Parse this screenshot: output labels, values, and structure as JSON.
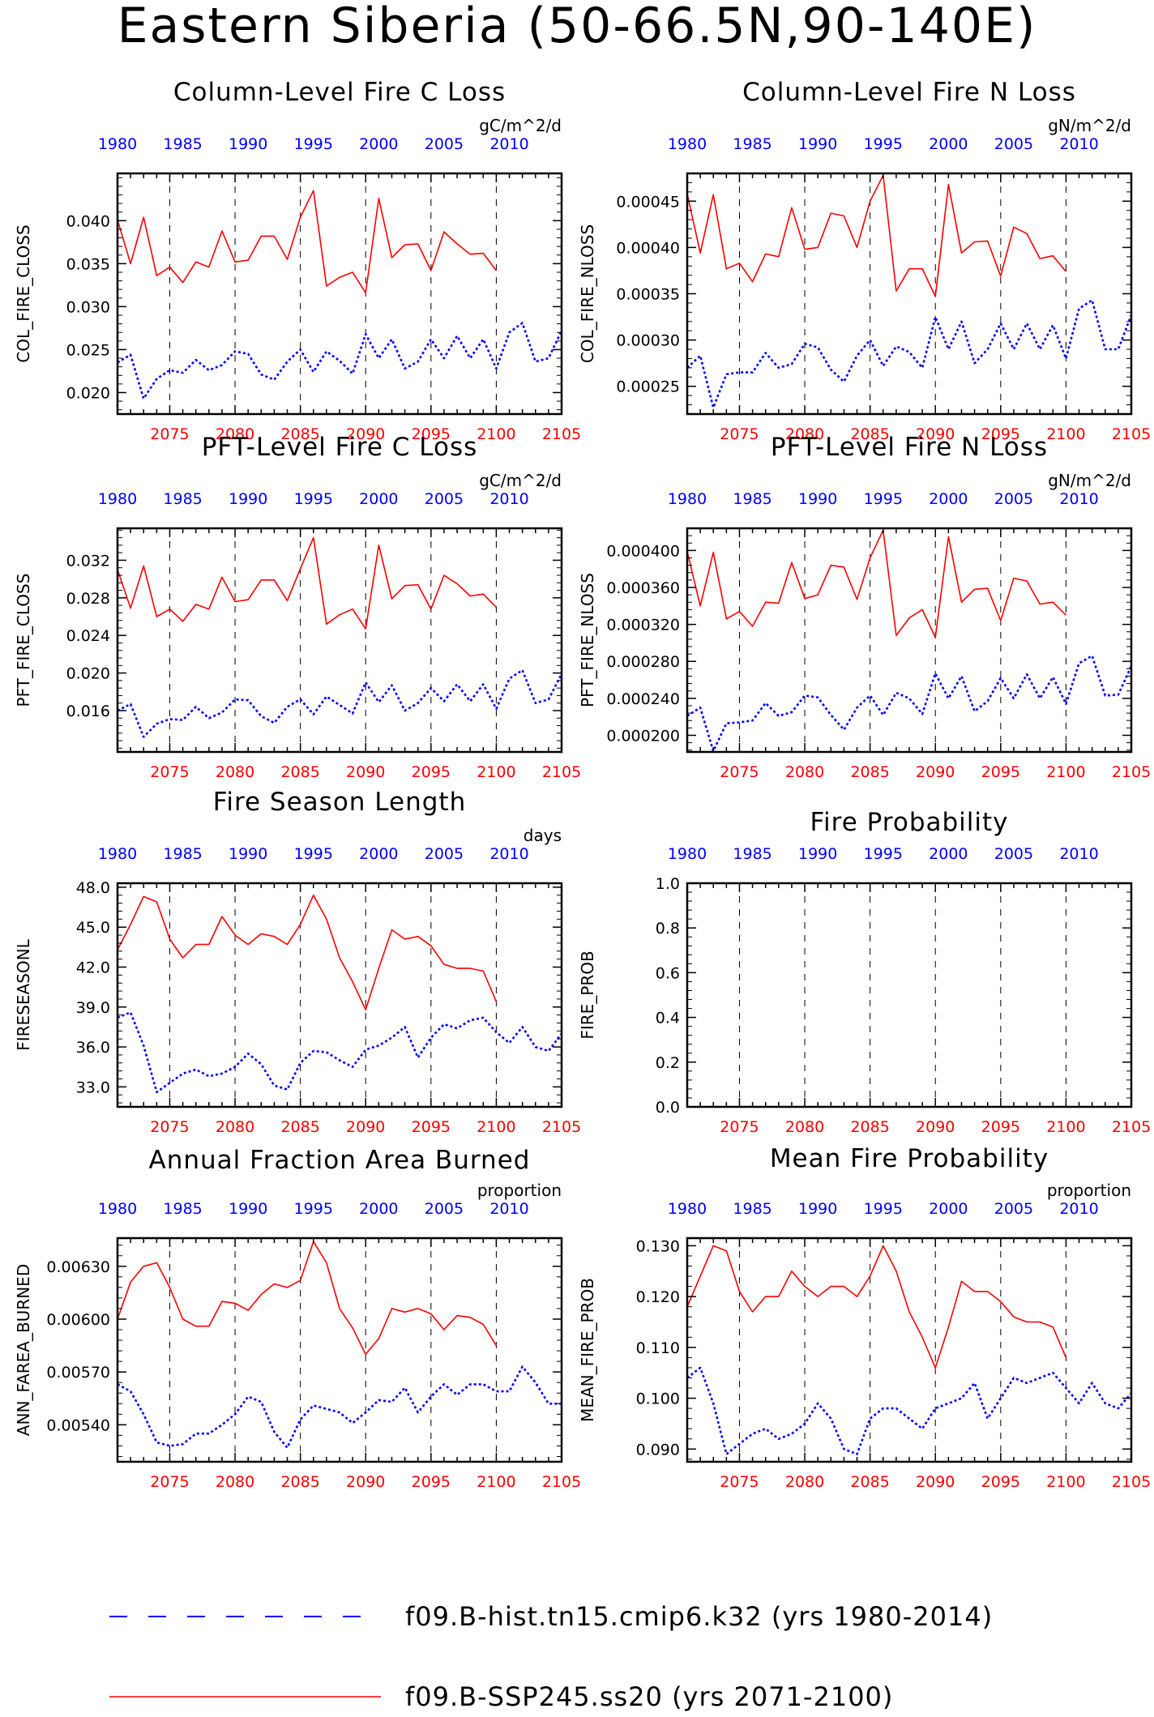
{
  "main_title": "Eastern Siberia (50-66.5N,90-140E)",
  "legend": [
    {
      "label": "f09.B-hist.tn15.cmip6.k32 (yrs 1980-2014)",
      "color": "#0000ff",
      "style": "dashed"
    },
    {
      "label": "f09.B-SSP245.ss20 (yrs 2071-2100)",
      "color": "#ff0000",
      "style": "solid"
    }
  ],
  "chart_data": [
    {
      "type": "line",
      "title": "Column-Level Fire C Loss",
      "ylabel": "COL_FIRE_CLOSS",
      "units": "gC/m^2/d",
      "ylim": [
        0.0175,
        0.0455
      ],
      "yticks": [
        0.02,
        0.025,
        0.03,
        0.035,
        0.04
      ],
      "ytick_labels": [
        "0.020",
        "0.025",
        "0.030",
        "0.035",
        "0.040"
      ],
      "xlim_bottom": [
        2071,
        2105
      ],
      "xlabel_bottom_ticks": [
        "2075",
        "2080",
        "2085",
        "2090",
        "2095",
        "2100",
        "2105"
      ],
      "xlabel_top_ticks": [
        "1980",
        "1985",
        "1990",
        "1995",
        "2000",
        "2005",
        "2010"
      ],
      "series": [
        {
          "color": "#ff0000",
          "x_start": 2071,
          "values": [
            0.0401,
            0.035,
            0.0404,
            0.0336,
            0.0346,
            0.0328,
            0.0352,
            0.0346,
            0.0388,
            0.0352,
            0.0354,
            0.0382,
            0.0382,
            0.0355,
            0.0404,
            0.0435,
            0.0324,
            0.0334,
            0.034,
            0.0316,
            0.0426,
            0.0357,
            0.0372,
            0.0373,
            0.0342,
            0.0387,
            0.0373,
            0.0361,
            0.0362,
            0.0342
          ]
        },
        {
          "color": "#0000ff",
          "x_start": 2071,
          "values": [
            0.0235,
            0.0244,
            0.0193,
            0.0216,
            0.0226,
            0.0223,
            0.0238,
            0.0226,
            0.0232,
            0.0248,
            0.0245,
            0.0221,
            0.0215,
            0.0236,
            0.025,
            0.0224,
            0.0248,
            0.0237,
            0.0222,
            0.0268,
            0.024,
            0.0262,
            0.0228,
            0.0236,
            0.0262,
            0.024,
            0.0266,
            0.024,
            0.0262,
            0.0228,
            0.027,
            0.0281,
            0.0236,
            0.024,
            0.0272
          ]
        }
      ]
    },
    {
      "type": "line",
      "title": "Column-Level Fire N Loss",
      "ylabel": "COL_FIRE_NLOSS",
      "units": "gN/m^2/d",
      "ylim": [
        0.00022,
        0.00048
      ],
      "yticks": [
        0.00025,
        0.0003,
        0.00035,
        0.0004,
        0.00045
      ],
      "ytick_labels": [
        "0.00025",
        "0.00030",
        "0.00035",
        "0.00040",
        "0.00045"
      ],
      "xlim_bottom": [
        2071,
        2105
      ],
      "xlabel_bottom_ticks": [
        "2075",
        "2080",
        "2085",
        "2090",
        "2095",
        "2100",
        "2105"
      ],
      "xlabel_top_ticks": [
        "1980",
        "1985",
        "1990",
        "1995",
        "2000",
        "2005",
        "2010"
      ],
      "series": [
        {
          "color": "#ff0000",
          "x_start": 2071,
          "values": [
            0.000458,
            0.000394,
            0.000457,
            0.000377,
            0.000383,
            0.000363,
            0.000393,
            0.00039,
            0.000443,
            0.000398,
            0.0004,
            0.000437,
            0.000434,
            0.0004,
            0.00045,
            0.000478,
            0.000353,
            0.000377,
            0.000377,
            0.000347,
            0.000468,
            0.000394,
            0.000406,
            0.000407,
            0.000369,
            0.000422,
            0.000415,
            0.000388,
            0.000391,
            0.000374
          ]
        },
        {
          "color": "#0000ff",
          "x_start": 2071,
          "values": [
            0.00027,
            0.000283,
            0.000227,
            0.000263,
            0.000265,
            0.000265,
            0.000286,
            0.00027,
            0.000274,
            0.000296,
            0.000292,
            0.000268,
            0.000255,
            0.000283,
            0.0003,
            0.000272,
            0.000293,
            0.000287,
            0.00027,
            0.000325,
            0.00029,
            0.00032,
            0.000275,
            0.00029,
            0.000318,
            0.00029,
            0.000318,
            0.00029,
            0.000316,
            0.00028,
            0.000334,
            0.000343,
            0.00029,
            0.00029,
            0.000327
          ]
        }
      ]
    },
    {
      "type": "line",
      "title": "PFT-Level Fire C Loss",
      "ylabel": "PFT_FIRE_CLOSS",
      "units": "gC/m^2/d",
      "ylim": [
        0.0116,
        0.0354
      ],
      "yticks": [
        0.016,
        0.02,
        0.024,
        0.028,
        0.032
      ],
      "ytick_labels": [
        "0.016",
        "0.020",
        "0.024",
        "0.028",
        "0.032"
      ],
      "xlim_bottom": [
        2071,
        2105
      ],
      "xlabel_bottom_ticks": [
        "2075",
        "2080",
        "2085",
        "2090",
        "2095",
        "2100",
        "2105"
      ],
      "xlabel_top_ticks": [
        "1980",
        "1985",
        "1990",
        "1995",
        "2000",
        "2005",
        "2010"
      ],
      "series": [
        {
          "color": "#ff0000",
          "x_start": 2071,
          "values": [
            0.031,
            0.0269,
            0.0314,
            0.026,
            0.0268,
            0.0255,
            0.0273,
            0.0268,
            0.0302,
            0.0276,
            0.0278,
            0.0299,
            0.0299,
            0.0277,
            0.0311,
            0.0344,
            0.0252,
            0.0262,
            0.0268,
            0.0247,
            0.0336,
            0.0279,
            0.0293,
            0.0294,
            0.0268,
            0.0304,
            0.0295,
            0.0282,
            0.0284,
            0.027
          ]
        },
        {
          "color": "#0000ff",
          "x_start": 2071,
          "values": [
            0.016,
            0.0167,
            0.0132,
            0.0146,
            0.0151,
            0.015,
            0.0164,
            0.0152,
            0.0158,
            0.0172,
            0.0171,
            0.0154,
            0.0147,
            0.0164,
            0.0172,
            0.0156,
            0.0175,
            0.0166,
            0.0157,
            0.019,
            0.0169,
            0.0187,
            0.016,
            0.0168,
            0.0184,
            0.017,
            0.0188,
            0.017,
            0.0188,
            0.0162,
            0.0194,
            0.0203,
            0.0168,
            0.0172,
            0.0199
          ]
        }
      ]
    },
    {
      "type": "line",
      "title": "PFT-Level Fire N Loss",
      "ylabel": "PFT_FIRE_NLOSS",
      "units": "gN/m^2/d",
      "ylim": [
        0.000182,
        0.000424
      ],
      "yticks": [
        0.0002,
        0.00024,
        0.00028,
        0.00032,
        0.00036,
        0.0004
      ],
      "ytick_labels": [
        "0.000200",
        "0.000240",
        "0.000280",
        "0.000320",
        "0.000360",
        "0.000400"
      ],
      "xlim_bottom": [
        2071,
        2105
      ],
      "xlabel_bottom_ticks": [
        "2075",
        "2080",
        "2085",
        "2090",
        "2095",
        "2100",
        "2105"
      ],
      "xlabel_top_ticks": [
        "1980",
        "1985",
        "1990",
        "1995",
        "2000",
        "2005",
        "2010"
      ],
      "series": [
        {
          "color": "#ff0000",
          "x_start": 2071,
          "values": [
            0.000399,
            0.00034,
            0.000398,
            0.000326,
            0.000334,
            0.000318,
            0.000344,
            0.000343,
            0.000387,
            0.000348,
            0.000352,
            0.000384,
            0.000382,
            0.000347,
            0.000392,
            0.000422,
            0.000308,
            0.000327,
            0.000336,
            0.000306,
            0.000415,
            0.000344,
            0.000358,
            0.000359,
            0.000324,
            0.00037,
            0.000367,
            0.000342,
            0.000344,
            0.00033
          ]
        },
        {
          "color": "#0000ff",
          "x_start": 2071,
          "values": [
            0.000221,
            0.00023,
            0.000183,
            0.000213,
            0.000214,
            0.000216,
            0.000235,
            0.000221,
            0.000225,
            0.000243,
            0.000241,
            0.000222,
            0.000206,
            0.00023,
            0.000243,
            0.000222,
            0.000246,
            0.00024,
            0.000223,
            0.000267,
            0.00024,
            0.000264,
            0.000226,
            0.000237,
            0.000262,
            0.00024,
            0.000266,
            0.00024,
            0.000263,
            0.000234,
            0.000278,
            0.000286,
            0.000243,
            0.000244,
            0.000275
          ]
        }
      ]
    },
    {
      "type": "line",
      "title": "Fire Season Length",
      "ylabel": "FIRESEASONL",
      "units": "days",
      "ylim": [
        31.5,
        48.3
      ],
      "yticks": [
        33,
        36,
        39,
        42,
        45,
        48
      ],
      "ytick_labels": [
        "33.0",
        "36.0",
        "39.0",
        "42.0",
        "45.0",
        "48.0"
      ],
      "xlim_bottom": [
        2071,
        2105
      ],
      "xlabel_bottom_ticks": [
        "2075",
        "2080",
        "2085",
        "2090",
        "2095",
        "2100",
        "2105"
      ],
      "xlabel_top_ticks": [
        "1980",
        "1985",
        "1990",
        "1995",
        "2000",
        "2005",
        "2010"
      ],
      "series": [
        {
          "color": "#ff0000",
          "x_start": 2071,
          "values": [
            43.3,
            45.2,
            47.3,
            46.9,
            44.1,
            42.7,
            43.7,
            43.7,
            45.8,
            44.4,
            43.7,
            44.5,
            44.3,
            43.7,
            45.2,
            47.4,
            45.6,
            42.7,
            40.9,
            38.8,
            41.9,
            44.8,
            44.1,
            44.3,
            43.6,
            42.2,
            41.9,
            41.9,
            41.7,
            39.4
          ]
        },
        {
          "color": "#0000ff",
          "x_start": 2071,
          "values": [
            38.2,
            38.6,
            36.1,
            32.6,
            33.3,
            34.0,
            34.3,
            33.8,
            34.0,
            34.5,
            35.5,
            34.7,
            33.1,
            32.8,
            34.8,
            35.7,
            35.6,
            35.0,
            34.5,
            35.8,
            36.1,
            36.7,
            37.5,
            35.2,
            36.7,
            37.7,
            37.4,
            38.0,
            38.2,
            37.1,
            36.3,
            37.5,
            36.0,
            35.7,
            37.0
          ]
        }
      ]
    },
    {
      "type": "line",
      "title": "Fire Probability",
      "ylabel": "FIRE_PROB",
      "units": "",
      "ylim": [
        0.0,
        1.0
      ],
      "yticks": [
        0.0,
        0.2,
        0.4,
        0.6,
        0.8,
        1.0
      ],
      "ytick_labels": [
        "0.0",
        "0.2",
        "0.4",
        "0.6",
        "0.8",
        "1.0"
      ],
      "xlim_bottom": [
        2071,
        2105
      ],
      "xlabel_bottom_ticks": [
        "2075",
        "2080",
        "2085",
        "2090",
        "2095",
        "2100",
        "2105"
      ],
      "xlabel_top_ticks": [
        "1980",
        "1985",
        "1990",
        "1995",
        "2000",
        "2005",
        "2010"
      ],
      "series": []
    },
    {
      "type": "line",
      "title": "Annual Fraction Area Burned",
      "ylabel": "ANN_FAREA_BURNED",
      "units": "proportion",
      "ylim": [
        0.00519,
        0.00646
      ],
      "yticks": [
        0.0054,
        0.0057,
        0.006,
        0.0063
      ],
      "ytick_labels": [
        "0.00540",
        "0.00570",
        "0.00600",
        "0.00630"
      ],
      "xlim_bottom": [
        2071,
        2105
      ],
      "xlabel_bottom_ticks": [
        "2075",
        "2080",
        "2085",
        "2090",
        "2095",
        "2100",
        "2105"
      ],
      "xlabel_top_ticks": [
        "1980",
        "1985",
        "1990",
        "1995",
        "2000",
        "2005",
        "2010"
      ],
      "series": [
        {
          "color": "#ff0000",
          "x_start": 2071,
          "values": [
            0.006,
            0.00621,
            0.0063,
            0.00632,
            0.00618,
            0.006,
            0.00596,
            0.00596,
            0.0061,
            0.00609,
            0.00605,
            0.00614,
            0.0062,
            0.00618,
            0.00622,
            0.00644,
            0.00632,
            0.00606,
            0.00595,
            0.0058,
            0.00589,
            0.00606,
            0.00604,
            0.00606,
            0.00603,
            0.00594,
            0.00602,
            0.00601,
            0.00597,
            0.00585
          ]
        },
        {
          "color": "#0000ff",
          "x_start": 2071,
          "values": [
            0.00563,
            0.00559,
            0.00546,
            0.0053,
            0.00528,
            0.00529,
            0.00535,
            0.00535,
            0.0054,
            0.00546,
            0.00556,
            0.00553,
            0.00536,
            0.00527,
            0.00543,
            0.00551,
            0.00549,
            0.00547,
            0.00541,
            0.00547,
            0.00554,
            0.00553,
            0.00561,
            0.00547,
            0.00556,
            0.00563,
            0.00557,
            0.00563,
            0.00563,
            0.00559,
            0.00559,
            0.00573,
            0.00564,
            0.00552,
            0.00552
          ]
        }
      ]
    },
    {
      "type": "line",
      "title": "Mean Fire Probability",
      "ylabel": "MEAN_FIRE_PROB",
      "units": "proportion",
      "ylim": [
        0.0875,
        0.1315
      ],
      "yticks": [
        0.09,
        0.1,
        0.11,
        0.12,
        0.13
      ],
      "ytick_labels": [
        "0.090",
        "0.100",
        "0.110",
        "0.120",
        "0.130"
      ],
      "xlim_bottom": [
        2071,
        2105
      ],
      "xlabel_bottom_ticks": [
        "2075",
        "2080",
        "2085",
        "2090",
        "2095",
        "2100",
        "2105"
      ],
      "xlabel_top_ticks": [
        "1980",
        "1985",
        "1990",
        "1995",
        "2000",
        "2005",
        "2010"
      ],
      "series": [
        {
          "color": "#ff0000",
          "x_start": 2071,
          "values": [
            0.118,
            0.124,
            0.13,
            0.129,
            0.121,
            0.117,
            0.12,
            0.12,
            0.125,
            0.122,
            0.12,
            0.122,
            0.122,
            0.12,
            0.124,
            0.13,
            0.125,
            0.117,
            0.112,
            0.106,
            0.114,
            0.123,
            0.121,
            0.121,
            0.119,
            0.116,
            0.115,
            0.115,
            0.114,
            0.108
          ]
        },
        {
          "color": "#0000ff",
          "x_start": 2071,
          "values": [
            0.104,
            0.106,
            0.099,
            0.089,
            0.091,
            0.093,
            0.094,
            0.092,
            0.093,
            0.095,
            0.099,
            0.096,
            0.09,
            0.089,
            0.096,
            0.098,
            0.098,
            0.096,
            0.094,
            0.098,
            0.099,
            0.1,
            0.103,
            0.096,
            0.1,
            0.104,
            0.103,
            0.104,
            0.105,
            0.102,
            0.099,
            0.103,
            0.099,
            0.098,
            0.101
          ]
        }
      ]
    }
  ]
}
